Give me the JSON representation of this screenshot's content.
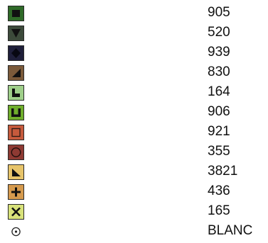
{
  "legend": {
    "items": [
      {
        "code": "905",
        "fill": "#2f6a28",
        "icon": "filled-square-icon"
      },
      {
        "code": "520",
        "fill": "#3c4a3a",
        "icon": "down-triangle-icon"
      },
      {
        "code": "939",
        "fill": "#1f1f3a",
        "icon": "diamond-icon"
      },
      {
        "code": "830",
        "fill": "#7b5a3a",
        "icon": "corner-triangle-icon"
      },
      {
        "code": "164",
        "fill": "#9fcf8a",
        "icon": "l-shape-icon"
      },
      {
        "code": "906",
        "fill": "#6fae2c",
        "icon": "u-shape-icon"
      },
      {
        "code": "921",
        "fill": "#c65a3c",
        "icon": "hollow-square-icon"
      },
      {
        "code": "355",
        "fill": "#8e3a33",
        "icon": "circle-icon"
      },
      {
        "code": "3821",
        "fill": "#e7c46a",
        "icon": "right-triangle-icon"
      },
      {
        "code": "436",
        "fill": "#d59a4e",
        "icon": "plus-icon"
      },
      {
        "code": "165",
        "fill": "#d8e27a",
        "icon": "x-mark-icon"
      },
      {
        "code": "BLANC",
        "fill": "#ffffff",
        "icon": "dot-circle-icon"
      }
    ]
  }
}
